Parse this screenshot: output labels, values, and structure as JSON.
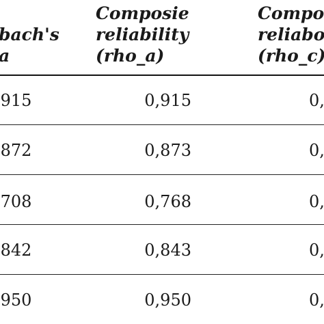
{
  "table": {
    "headers": {
      "col1": [
        "bach's",
        "a"
      ],
      "col2": [
        "Composie",
        "reliability",
        "(rho_a)"
      ],
      "col3": [
        "Compos",
        "reliabo",
        "(rho_c)"
      ]
    },
    "rows": [
      {
        "col1": ",915",
        "col2": "0,915",
        "col3": "0,"
      },
      {
        "col1": ",872",
        "col2": "0,873",
        "col3": "0,"
      },
      {
        "col1": ",708",
        "col2": "0,768",
        "col3": "0,"
      },
      {
        "col1": ",842",
        "col2": "0,843",
        "col3": "0,"
      },
      {
        "col1": ",950",
        "col2": "0,950",
        "col3": "0,"
      }
    ]
  }
}
